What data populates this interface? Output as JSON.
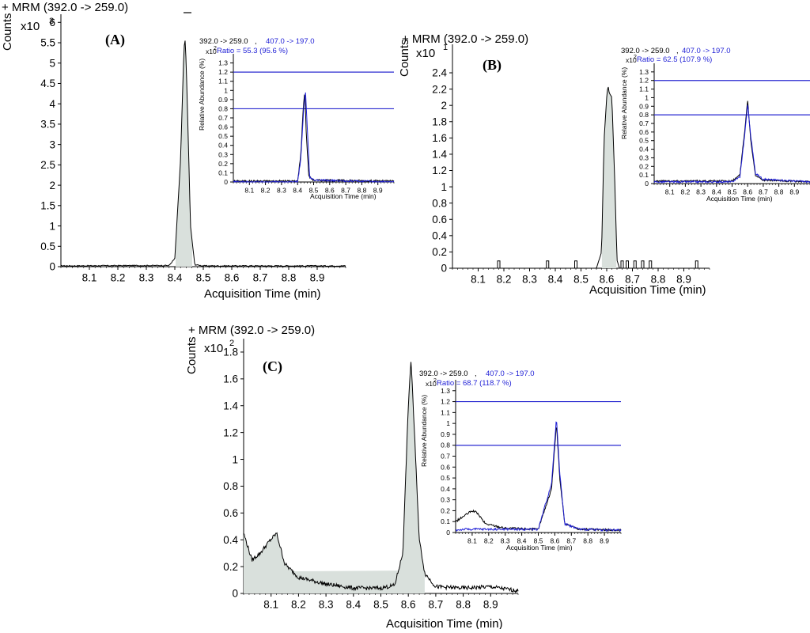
{
  "panels": {
    "a": {
      "header": "+ MRM (392.0 -> 259.0)",
      "ylabel": "Counts",
      "multiplier": "x10",
      "exponent": "3",
      "panel_label": "(A)",
      "xlabel": "Acquisition Time (min)",
      "inset": {
        "transitions_black": "392.0 -> 259.0",
        "sep": " , ",
        "transitions_blue": "407.0 -> 197.0",
        "ratio": "Ratio = 55.3 (95.6 %)",
        "multiplier": "x10",
        "exponent": "2",
        "ylabel": "Relative Abundance (%)",
        "xlabel": "Acquisition Time (min)"
      }
    },
    "b": {
      "header": "+ MRM (392.0 -> 259.0)",
      "ylabel": "Counts",
      "multiplier": "x10",
      "exponent": "1",
      "panel_label": "(B)",
      "xlabel": "Acquisition Time (min)",
      "inset": {
        "transitions_black": "392.0 -> 259.0",
        "sep": ", ",
        "transitions_blue": "407.0 -> 197.0",
        "ratio": "Ratio = 62.5 (107.9 %)",
        "multiplier": "x10",
        "exponent": "2",
        "ylabel": "Relative Abundance (%)",
        "xlabel": "Acquisition Time (min)"
      }
    },
    "c": {
      "header": "+ MRM (392.0 -> 259.0)",
      "ylabel": "Counts",
      "multiplier": "x10",
      "exponent": "2",
      "panel_label": "(C)",
      "xlabel": "Acquisition Time (min)",
      "inset": {
        "transitions_black": "392.0 -> 259.0",
        "sep": " , ",
        "transitions_blue": "407.0 -> 197.0",
        "ratio": "Ratio = 68.7 (118.7 %)",
        "multiplier": "x10",
        "exponent": "2",
        "ylabel": "Relative Abundance (%)",
        "xlabel": "Acquisition Time (min)"
      }
    }
  },
  "colors": {
    "trace": "#000000",
    "qualifier": "#1f1fd6",
    "fill": "#d9e0dc",
    "bounds": "#2a2ad0"
  },
  "chart_data": [
    {
      "id": "A",
      "type": "area",
      "xlim": [
        8.0,
        9.0
      ],
      "ylim": [
        0,
        6.2
      ],
      "xticks": [
        8.1,
        8.2,
        8.3,
        8.4,
        8.5,
        8.6,
        8.7,
        8.8,
        8.9
      ],
      "yticks": [
        0,
        0.5,
        1,
        1.5,
        2,
        2.5,
        3,
        3.5,
        4,
        4.5,
        5,
        5.5,
        6
      ],
      "series": [
        {
          "x": [
            8.0,
            8.38,
            8.4,
            8.42,
            8.43,
            8.435,
            8.44,
            8.45,
            8.455,
            8.47,
            8.5,
            9.0
          ],
          "y": [
            0.02,
            0.03,
            0.2,
            2.6,
            4.9,
            5.7,
            5.0,
            2.4,
            1.0,
            0.05,
            0.02,
            0.02
          ]
        }
      ],
      "inset": {
        "type": "line",
        "xlim": [
          8.0,
          9.0
        ],
        "ylim": [
          0,
          1.4
        ],
        "xticks": [
          8.1,
          8.2,
          8.3,
          8.4,
          8.5,
          8.6,
          8.7,
          8.8,
          8.9
        ],
        "yticks": [
          0,
          0.1,
          0.2,
          0.3,
          0.4,
          0.5,
          0.6,
          0.7,
          0.8,
          0.9,
          1,
          1.1,
          1.2,
          1.3
        ],
        "bounds": [
          0.8,
          1.2
        ],
        "series": [
          {
            "x": [
              8.0,
              8.4,
              8.42,
              8.435,
              8.445,
              8.455,
              8.47,
              8.5,
              9.0
            ],
            "y": [
              0.01,
              0.01,
              0.3,
              0.8,
              1.0,
              0.5,
              0.06,
              0.02,
              0.01
            ]
          },
          {
            "x": [
              8.0,
              8.4,
              8.42,
              8.44,
              8.45,
              8.46,
              8.475,
              8.5,
              9.0
            ],
            "y": [
              0.0,
              0.0,
              0.25,
              0.85,
              0.98,
              0.6,
              0.05,
              0.02,
              0.0
            ]
          }
        ]
      }
    },
    {
      "id": "B",
      "type": "area",
      "xlim": [
        8.0,
        9.0
      ],
      "ylim": [
        0,
        2.75
      ],
      "xticks": [
        8.1,
        8.2,
        8.3,
        8.4,
        8.5,
        8.6,
        8.7,
        8.8,
        8.9
      ],
      "yticks": [
        0,
        0.2,
        0.4,
        0.6,
        0.8,
        1,
        1.2,
        1.4,
        1.6,
        1.8,
        2,
        2.2,
        2.4
      ],
      "series": [
        {
          "x": [
            8.0,
            8.56,
            8.58,
            8.59,
            8.6,
            8.605,
            8.61,
            8.62,
            8.63,
            8.64,
            8.65,
            9.0
          ],
          "y": [
            0,
            0,
            0.2,
            1.6,
            2.1,
            2.25,
            2.15,
            2.1,
            1.2,
            0.1,
            0,
            0
          ]
        }
      ],
      "spikes": [
        8.18,
        8.37,
        8.48,
        8.66,
        8.68,
        8.71,
        8.74,
        8.77,
        8.95
      ],
      "inset": {
        "type": "line",
        "xlim": [
          8.0,
          9.0
        ],
        "ylim": [
          0,
          1.4
        ],
        "xticks": [
          8.1,
          8.2,
          8.3,
          8.4,
          8.5,
          8.6,
          8.7,
          8.8,
          8.9
        ],
        "yticks": [
          0,
          0.1,
          0.2,
          0.3,
          0.4,
          0.5,
          0.6,
          0.7,
          0.8,
          0.9,
          1,
          1.1,
          1.2,
          1.3
        ],
        "bounds": [
          0.8,
          1.2
        ],
        "series": [
          {
            "x": [
              8.0,
              8.5,
              8.55,
              8.58,
              8.6,
              8.62,
              8.65,
              8.7,
              9.0
            ],
            "y": [
              0.03,
              0.03,
              0.1,
              0.6,
              0.97,
              0.5,
              0.1,
              0.04,
              0.02
            ]
          },
          {
            "x": [
              8.0,
              8.5,
              8.55,
              8.58,
              8.6,
              8.62,
              8.65,
              8.7,
              9.0
            ],
            "y": [
              0.02,
              0.02,
              0.08,
              0.55,
              0.92,
              0.55,
              0.12,
              0.05,
              0.02
            ]
          }
        ]
      }
    },
    {
      "id": "C",
      "type": "area",
      "xlim": [
        8.0,
        9.0
      ],
      "ylim": [
        0,
        1.9
      ],
      "xticks": [
        8.1,
        8.2,
        8.3,
        8.4,
        8.5,
        8.6,
        8.7,
        8.8,
        8.9
      ],
      "yticks": [
        0,
        0.2,
        0.4,
        0.6,
        0.8,
        1,
        1.2,
        1.4,
        1.6,
        1.8
      ],
      "series": [
        {
          "x": [
            8.0,
            8.03,
            8.06,
            8.09,
            8.12,
            8.15,
            8.2,
            8.3,
            8.4,
            8.5,
            8.55,
            8.58,
            8.6,
            8.61,
            8.62,
            8.64,
            8.66,
            8.7,
            8.8,
            8.9,
            9.0
          ],
          "y": [
            0.45,
            0.25,
            0.3,
            0.38,
            0.45,
            0.22,
            0.12,
            0.07,
            0.04,
            0.04,
            0.06,
            0.3,
            1.4,
            1.75,
            1.3,
            0.4,
            0.15,
            0.05,
            0.04,
            0.05,
            0.02
          ]
        }
      ],
      "inset": {
        "type": "line",
        "xlim": [
          8.0,
          9.0
        ],
        "ylim": [
          0,
          1.4
        ],
        "xticks": [
          8.1,
          8.2,
          8.3,
          8.4,
          8.5,
          8.6,
          8.7,
          8.8,
          8.9
        ],
        "yticks": [
          0,
          0.1,
          0.2,
          0.3,
          0.4,
          0.5,
          0.6,
          0.7,
          0.8,
          0.9,
          1,
          1.1,
          1.2,
          1.3
        ],
        "bounds": [
          0.8,
          1.2
        ],
        "series": [
          {
            "x": [
              8.0,
              8.05,
              8.1,
              8.13,
              8.18,
              8.3,
              8.5,
              8.58,
              8.61,
              8.63,
              8.66,
              8.75,
              9.0
            ],
            "y": [
              0.1,
              0.15,
              0.2,
              0.18,
              0.08,
              0.04,
              0.03,
              0.4,
              1.0,
              0.5,
              0.08,
              0.03,
              0.02
            ]
          },
          {
            "x": [
              8.0,
              8.05,
              8.1,
              8.3,
              8.5,
              8.58,
              8.61,
              8.63,
              8.66,
              8.75,
              9.0
            ],
            "y": [
              0.02,
              0.03,
              0.03,
              0.03,
              0.03,
              0.45,
              1.05,
              0.55,
              0.08,
              0.03,
              0.02
            ]
          }
        ]
      }
    }
  ]
}
